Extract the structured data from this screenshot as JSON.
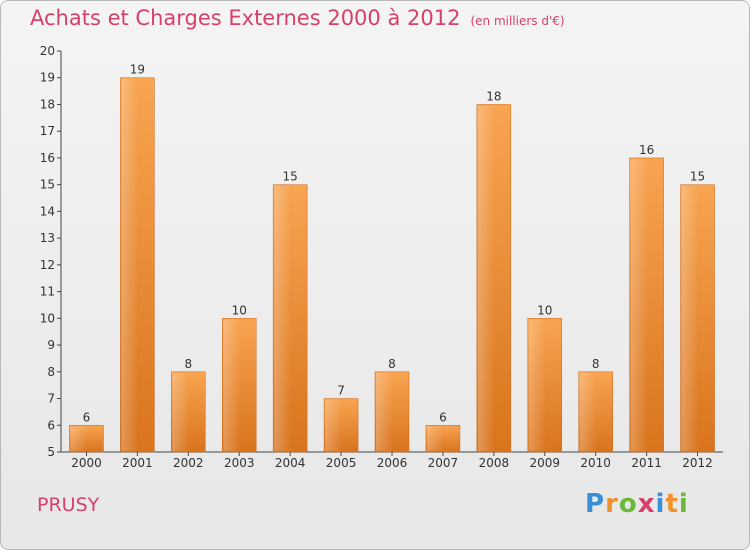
{
  "chart_data": {
    "type": "bar",
    "title": "Achats et Charges Externes 2000 à 2012",
    "subtitle": "(en milliers d'€)",
    "categories": [
      "2000",
      "2001",
      "2002",
      "2003",
      "2004",
      "2005",
      "2006",
      "2007",
      "2008",
      "2009",
      "2010",
      "2011",
      "2012"
    ],
    "values": [
      6,
      19,
      8,
      10,
      15,
      7,
      8,
      6,
      18,
      10,
      8,
      16,
      15
    ],
    "ylim": [
      5,
      20
    ],
    "yticks": [
      "5",
      "6",
      "7",
      "8",
      "9",
      "10",
      "11",
      "12",
      "13",
      "14",
      "15",
      "16",
      "17",
      "18",
      "19",
      "20"
    ],
    "grid": false,
    "bar_color": "#f0923a"
  },
  "municipality": "PRUSY",
  "logo": {
    "letters": [
      "P",
      "r",
      "o",
      "x",
      "i",
      "t",
      "i"
    ],
    "colors": [
      "#3a8fd6",
      "#f0922e",
      "#6cb83c",
      "#d6416a",
      "#3a8fd6",
      "#f0922e",
      "#6cb83c"
    ]
  }
}
